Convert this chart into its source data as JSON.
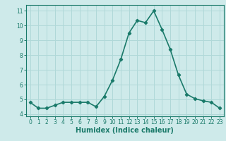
{
  "x": [
    0,
    1,
    2,
    3,
    4,
    5,
    6,
    7,
    8,
    9,
    10,
    11,
    12,
    13,
    14,
    15,
    16,
    17,
    18,
    19,
    20,
    21,
    22,
    23
  ],
  "y": [
    4.8,
    4.4,
    4.4,
    4.6,
    4.8,
    4.8,
    4.8,
    4.8,
    4.5,
    5.2,
    6.3,
    7.7,
    9.5,
    10.35,
    10.2,
    11.0,
    9.75,
    8.4,
    6.65,
    5.35,
    5.05,
    4.9,
    4.8,
    4.4
  ],
  "line_color": "#1a7a6a",
  "marker": "D",
  "marker_size": 2.2,
  "bg_color": "#ceeaea",
  "grid_color": "#b0d8d8",
  "xlabel": "Humidex (Indice chaleur)",
  "xlim": [
    -0.5,
    23.5
  ],
  "ylim": [
    3.85,
    11.4
  ],
  "yticks": [
    4,
    5,
    6,
    7,
    8,
    9,
    10,
    11
  ],
  "xticks": [
    0,
    1,
    2,
    3,
    4,
    5,
    6,
    7,
    8,
    9,
    10,
    11,
    12,
    13,
    14,
    15,
    16,
    17,
    18,
    19,
    20,
    21,
    22,
    23
  ],
  "font_color": "#1a7a6a",
  "axis_color": "#1a7a6a",
  "line_width": 1.2,
  "tick_fontsize": 5.5,
  "xlabel_fontsize": 7.0
}
